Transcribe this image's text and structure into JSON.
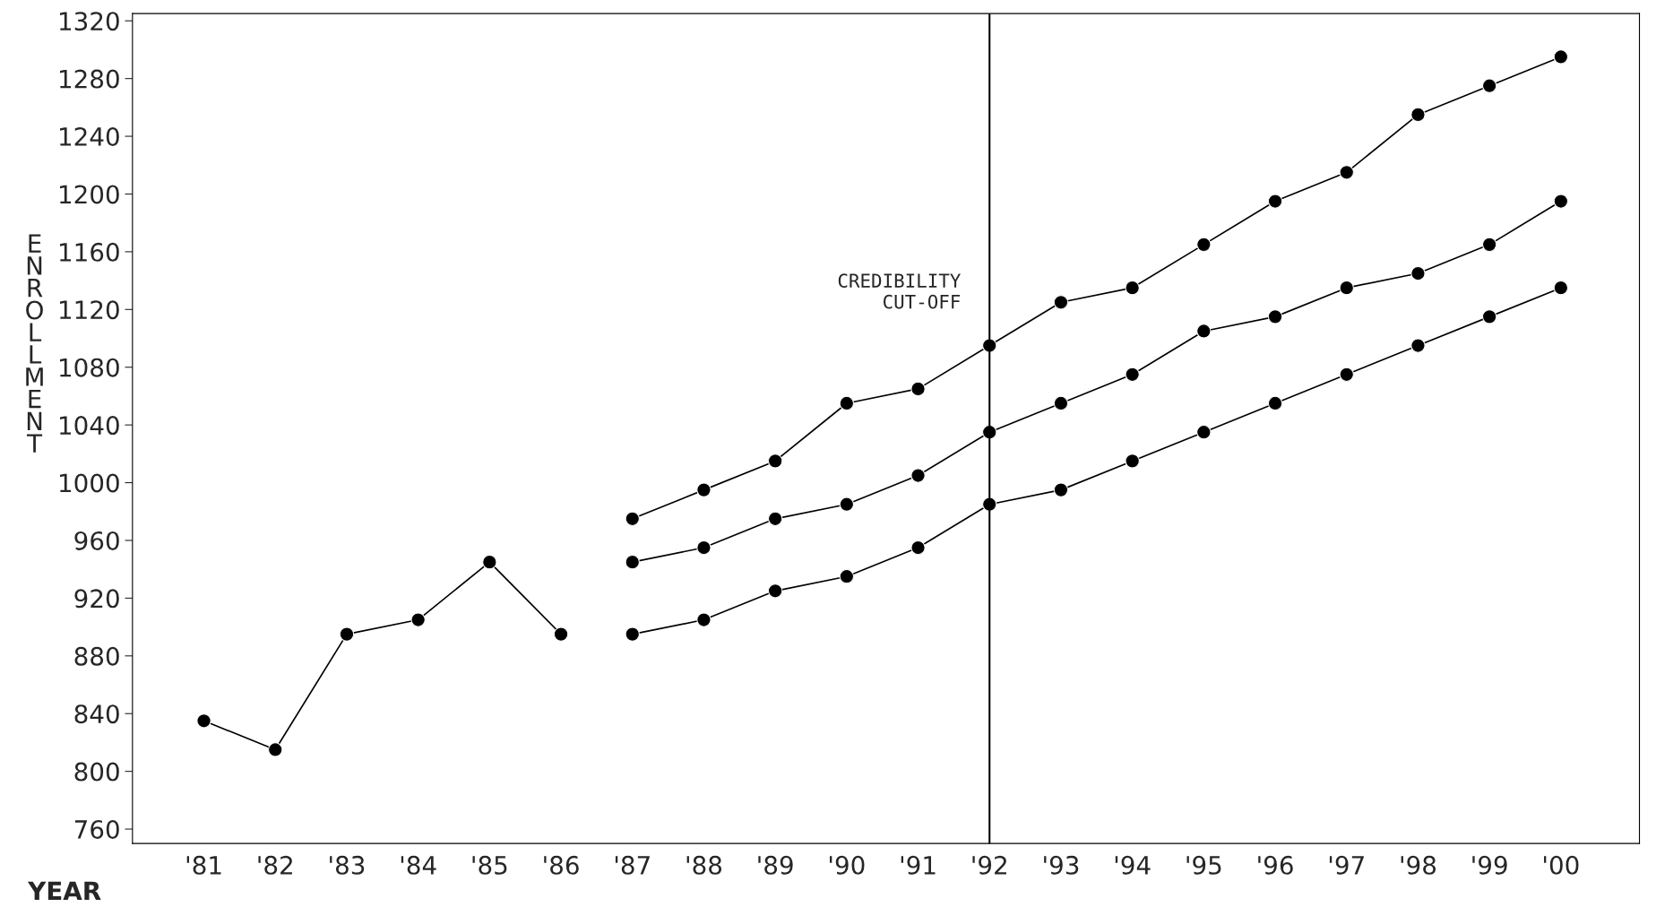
{
  "chart_data": {
    "type": "line",
    "xlabel": "YEAR",
    "ylabel": "ENROLLMENT",
    "xlim": [
      1980,
      2001.1
    ],
    "ylim": [
      750,
      1325
    ],
    "xticks": [
      {
        "value": 1981,
        "label": "'81"
      },
      {
        "value": 1982,
        "label": "'82"
      },
      {
        "value": 1983,
        "label": "'83"
      },
      {
        "value": 1984,
        "label": "'84"
      },
      {
        "value": 1985,
        "label": "'85"
      },
      {
        "value": 1986,
        "label": "'86"
      },
      {
        "value": 1987,
        "label": "'87"
      },
      {
        "value": 1988,
        "label": "'88"
      },
      {
        "value": 1989,
        "label": "'89"
      },
      {
        "value": 1990,
        "label": "'90"
      },
      {
        "value": 1991,
        "label": "'91"
      },
      {
        "value": 1992,
        "label": "'92"
      },
      {
        "value": 1993,
        "label": "'93"
      },
      {
        "value": 1994,
        "label": "'94"
      },
      {
        "value": 1995,
        "label": "'95"
      },
      {
        "value": 1996,
        "label": "'96"
      },
      {
        "value": 1997,
        "label": "'97"
      },
      {
        "value": 1998,
        "label": "'98"
      },
      {
        "value": 1999,
        "label": "'99"
      },
      {
        "value": 2000,
        "label": "'00"
      }
    ],
    "yticks": [
      760,
      800,
      840,
      880,
      920,
      960,
      1000,
      1040,
      1080,
      1120,
      1160,
      1200,
      1240,
      1280,
      1320
    ],
    "marker": "circle",
    "grid": false,
    "legend": false,
    "series": [
      {
        "color": "#000000",
        "x": [
          1981,
          1982,
          1983,
          1984,
          1985,
          1986
        ],
        "values": [
          835,
          815,
          895,
          905,
          945,
          895
        ]
      },
      {
        "color": "#000000",
        "x": [
          1987,
          1988,
          1989,
          1990,
          1991,
          1992,
          1993,
          1994,
          1995,
          1996,
          1997,
          1998,
          1999,
          2000
        ],
        "values": [
          975,
          995,
          1015,
          1055,
          1065,
          1095,
          1125,
          1135,
          1165,
          1195,
          1215,
          1255,
          1275,
          1295
        ]
      },
      {
        "color": "#000000",
        "x": [
          1987,
          1988,
          1989,
          1990,
          1991,
          1992,
          1993,
          1994,
          1995,
          1996,
          1997,
          1998,
          1999,
          2000
        ],
        "values": [
          945,
          955,
          975,
          985,
          1005,
          1035,
          1055,
          1075,
          1105,
          1115,
          1135,
          1145,
          1165,
          1195
        ]
      },
      {
        "color": "#000000",
        "x": [
          1987,
          1988,
          1989,
          1990,
          1991,
          1992,
          1993,
          1994,
          1995,
          1996,
          1997,
          1998,
          1999,
          2000
        ],
        "values": [
          895,
          905,
          925,
          935,
          955,
          985,
          995,
          1015,
          1035,
          1055,
          1075,
          1095,
          1115,
          1135
        ]
      }
    ],
    "ref_lines": [
      {
        "axis": "x",
        "value": 1992,
        "label": "CREDIBILITY\nCUT-OFF",
        "color": "#000000"
      }
    ]
  }
}
